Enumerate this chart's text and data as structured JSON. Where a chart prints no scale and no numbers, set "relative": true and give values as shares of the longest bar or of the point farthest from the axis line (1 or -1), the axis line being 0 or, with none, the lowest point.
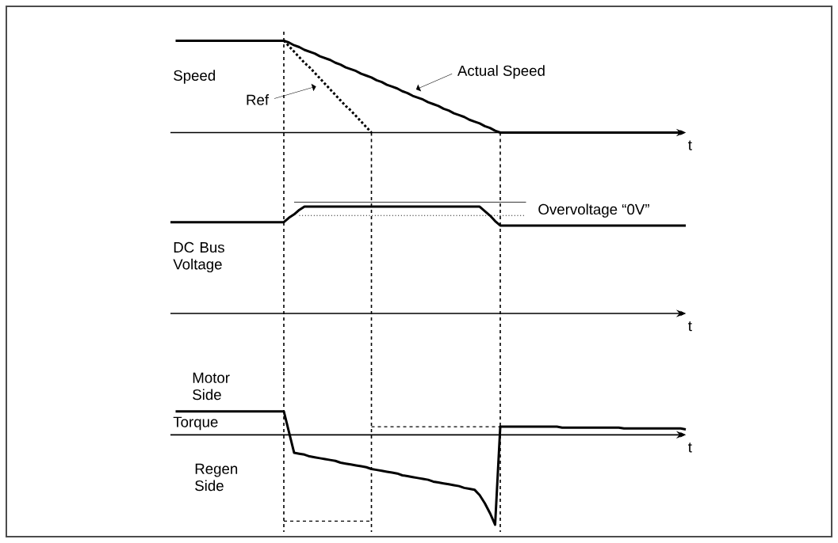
{
  "chart_data": [
    {
      "type": "line",
      "ylabel": "Speed",
      "xlabel": "t",
      "relative": true,
      "tick_labels": false,
      "marker": "none",
      "categories": [
        null,
        null,
        null,
        null,
        null,
        null,
        null,
        null,
        null,
        null,
        null,
        null,
        null,
        null,
        null,
        null,
        null,
        null,
        null,
        null,
        null,
        null,
        null,
        null,
        null,
        null,
        null,
        null,
        null,
        null,
        null,
        null,
        null,
        null,
        null,
        null,
        null,
        null,
        null,
        null,
        null,
        null,
        null,
        null,
        null,
        null,
        null,
        null,
        null,
        null,
        null,
        null,
        null,
        null,
        null,
        null,
        null,
        null,
        null,
        null,
        null,
        null,
        null,
        null,
        null,
        null,
        null,
        null,
        null,
        null,
        null,
        null,
        null,
        null,
        null,
        null,
        null,
        null,
        null,
        null,
        null,
        null,
        null,
        null,
        null,
        null,
        null,
        null,
        null,
        null,
        null,
        null,
        null,
        null,
        null,
        null,
        null,
        null,
        null,
        null,
        null
      ],
      "series": [
        {
          "name": "Actual Speed",
          "color": "#000000",
          "line_style": "solid",
          "values": [
            null,
            1,
            1,
            1,
            1,
            1,
            1,
            1,
            1,
            1,
            1,
            1,
            1,
            1,
            1,
            1,
            1,
            1,
            1,
            1,
            1,
            1,
            1,
            0.98,
            0.95,
            0.93,
            0.9,
            0.88,
            0.86,
            0.83,
            0.81,
            0.79,
            0.76,
            0.74,
            0.71,
            0.69,
            0.67,
            0.64,
            0.62,
            0.6,
            0.57,
            0.55,
            0.52,
            0.5,
            0.48,
            0.45,
            0.43,
            0.4,
            0.38,
            0.36,
            0.33,
            0.31,
            0.29,
            0.26,
            0.24,
            0.21,
            0.19,
            0.17,
            0.14,
            0.12,
            0.1,
            0.07,
            0.05,
            0.02,
            0,
            0,
            0,
            0,
            0,
            0,
            0,
            0,
            0,
            0,
            0,
            0,
            0,
            0,
            0,
            0,
            0,
            0,
            0,
            0,
            0,
            0,
            0,
            0,
            0,
            0,
            0,
            0,
            0,
            0,
            0,
            0,
            0,
            0,
            0,
            0,
            null
          ]
        },
        {
          "name": "Ref",
          "color": "#000000",
          "line_style": "dotted",
          "values": [
            null,
            null,
            null,
            null,
            null,
            null,
            null,
            null,
            null,
            null,
            null,
            null,
            null,
            null,
            null,
            null,
            null,
            null,
            null,
            null,
            null,
            null,
            1,
            0.94,
            0.88,
            0.82,
            0.76,
            0.71,
            0.65,
            0.59,
            0.53,
            0.47,
            0.41,
            0.35,
            0.29,
            0.24,
            0.18,
            0.12,
            0.06,
            0,
            null,
            null,
            null,
            null,
            null,
            null,
            null,
            null,
            null,
            null,
            null,
            null,
            null,
            null,
            null,
            null,
            null,
            null,
            null,
            null,
            null,
            null,
            null,
            null,
            null,
            null,
            null,
            null,
            null,
            null,
            null,
            null,
            null,
            null,
            null,
            null,
            null,
            null,
            null,
            null,
            null,
            null,
            null,
            null,
            null,
            null,
            null,
            null,
            null,
            null,
            null,
            null,
            null,
            null,
            null,
            null,
            null,
            null,
            null,
            null,
            null
          ]
        }
      ]
    },
    {
      "type": "line",
      "ylabel": "DC Bus Voltage",
      "xlabel": "t",
      "relative": true,
      "tick_labels": false,
      "marker": "none",
      "categories": [
        null,
        null,
        null,
        null,
        null,
        null,
        null,
        null,
        null,
        null,
        null,
        null,
        null,
        null,
        null,
        null,
        null,
        null,
        null,
        null,
        null,
        null,
        null,
        null,
        null,
        null,
        null,
        null,
        null,
        null,
        null,
        null,
        null,
        null,
        null,
        null,
        null,
        null,
        null,
        null,
        null,
        null,
        null,
        null,
        null,
        null,
        null,
        null,
        null,
        null,
        null,
        null,
        null,
        null,
        null,
        null,
        null,
        null,
        null,
        null,
        null,
        null,
        null,
        null,
        null,
        null,
        null,
        null,
        null,
        null,
        null,
        null,
        null,
        null,
        null,
        null,
        null,
        null,
        null,
        null,
        null,
        null,
        null,
        null,
        null,
        null,
        null,
        null,
        null,
        null,
        null,
        null,
        null,
        null,
        null,
        null,
        null,
        null,
        null,
        null,
        null
      ],
      "series": [
        {
          "color": "#000000",
          "line_style": "solid",
          "values": [
            0.82,
            0.82,
            0.82,
            0.82,
            0.82,
            0.82,
            0.82,
            0.82,
            0.82,
            0.82,
            0.82,
            0.82,
            0.82,
            0.82,
            0.82,
            0.82,
            0.82,
            0.82,
            0.82,
            0.82,
            0.82,
            0.82,
            0.82,
            0.86,
            0.89,
            0.93,
            0.96,
            0.96,
            0.96,
            0.96,
            0.96,
            0.96,
            0.96,
            0.96,
            0.96,
            0.96,
            0.96,
            0.96,
            0.96,
            0.96,
            0.96,
            0.96,
            0.96,
            0.96,
            0.96,
            0.96,
            0.96,
            0.96,
            0.96,
            0.96,
            0.96,
            0.96,
            0.96,
            0.96,
            0.96,
            0.96,
            0.96,
            0.96,
            0.96,
            0.96,
            0.96,
            0.92,
            0.88,
            0.83,
            0.79,
            0.79,
            0.79,
            0.79,
            0.79,
            0.79,
            0.79,
            0.79,
            0.79,
            0.79,
            0.79,
            0.79,
            0.79,
            0.79,
            0.79,
            0.79,
            0.79,
            0.79,
            0.79,
            0.79,
            0.79,
            0.79,
            0.79,
            0.79,
            0.79,
            0.79,
            0.79,
            0.79,
            0.79,
            0.79,
            0.79,
            0.79,
            0.79,
            0.79,
            0.79,
            0.79,
            0.79
          ]
        },
        {
          "name": "Overvoltage “0V”",
          "color": "#000000",
          "line_style": "solid",
          "values": [
            null,
            null,
            null,
            null,
            null,
            null,
            null,
            null,
            null,
            null,
            null,
            null,
            null,
            null,
            null,
            null,
            null,
            null,
            null,
            null,
            null,
            null,
            null,
            null,
            1,
            1,
            1,
            1,
            1,
            1,
            1,
            1,
            1,
            1,
            1,
            1,
            1,
            1,
            1,
            1,
            1,
            1,
            1,
            1,
            1,
            1,
            1,
            1,
            1,
            1,
            1,
            1,
            1,
            1,
            1,
            1,
            1,
            1,
            1,
            1,
            1,
            1,
            1,
            1,
            1,
            1,
            1,
            1,
            1,
            1,
            null,
            null,
            null,
            null,
            null,
            null,
            null,
            null,
            null,
            null,
            null,
            null,
            null,
            null,
            null,
            null,
            null,
            null,
            null,
            null,
            null,
            null,
            null,
            null,
            null,
            null,
            null,
            null,
            null,
            null,
            null
          ]
        },
        {
          "color": "#000000",
          "line_style": "dotted",
          "values": [
            null,
            null,
            null,
            null,
            null,
            null,
            null,
            null,
            null,
            null,
            null,
            null,
            null,
            null,
            null,
            null,
            null,
            null,
            null,
            null,
            null,
            null,
            null,
            null,
            null,
            0.88,
            0.88,
            0.88,
            0.88,
            0.88,
            0.88,
            0.88,
            0.88,
            0.88,
            0.88,
            0.88,
            0.88,
            0.88,
            0.88,
            0.88,
            0.88,
            0.88,
            0.88,
            0.88,
            0.88,
            0.88,
            0.88,
            0.88,
            0.88,
            0.88,
            0.88,
            0.88,
            0.88,
            0.88,
            0.88,
            0.88,
            0.88,
            0.88,
            0.88,
            0.88,
            0.88,
            0.88,
            0.88,
            0.88,
            0.88,
            0.88,
            0.88,
            0.88,
            0.88,
            0.88,
            null,
            null,
            null,
            null,
            null,
            null,
            null,
            null,
            null,
            null,
            null,
            null,
            null,
            null,
            null,
            null,
            null,
            null,
            null,
            null,
            null,
            null,
            null,
            null,
            null,
            null,
            null,
            null,
            null,
            null,
            null
          ]
        }
      ]
    },
    {
      "type": "line",
      "ylabel": "Torque",
      "xlabel": "t",
      "relative": true,
      "tick_labels": false,
      "marker": "none",
      "categories": [
        null,
        null,
        null,
        null,
        null,
        null,
        null,
        null,
        null,
        null,
        null,
        null,
        null,
        null,
        null,
        null,
        null,
        null,
        null,
        null,
        null,
        null,
        null,
        null,
        null,
        null,
        null,
        null,
        null,
        null,
        null,
        null,
        null,
        null,
        null,
        null,
        null,
        null,
        null,
        null,
        null,
        null,
        null,
        null,
        null,
        null,
        null,
        null,
        null,
        null,
        null,
        null,
        null,
        null,
        null,
        null,
        null,
        null,
        null,
        null,
        null,
        null,
        null,
        null,
        null,
        null,
        null,
        null,
        null,
        null,
        null,
        null,
        null,
        null,
        null,
        null,
        null,
        null,
        null,
        null,
        null,
        null,
        null,
        null,
        null,
        null,
        null,
        null,
        null,
        null,
        null,
        null,
        null,
        null,
        null,
        null,
        null,
        null,
        null,
        null,
        null
      ],
      "series": [
        {
          "color": "#000000",
          "line_style": "solid",
          "values": [
            null,
            0.26,
            0.26,
            0.26,
            0.26,
            0.26,
            0.26,
            0.26,
            0.26,
            0.26,
            0.26,
            0.26,
            0.26,
            0.26,
            0.26,
            0.26,
            0.26,
            0.26,
            0.26,
            0.26,
            0.26,
            0.26,
            0.26,
            0.03,
            -0.2,
            -0.21,
            -0.22,
            -0.24,
            -0.25,
            -0.26,
            -0.27,
            -0.28,
            -0.29,
            -0.31,
            -0.32,
            -0.33,
            -0.34,
            -0.35,
            -0.36,
            -0.38,
            -0.39,
            -0.4,
            -0.41,
            -0.42,
            -0.43,
            -0.45,
            -0.46,
            -0.47,
            -0.48,
            -0.49,
            -0.5,
            -0.52,
            -0.53,
            -0.54,
            -0.55,
            -0.56,
            -0.57,
            -0.59,
            -0.6,
            -0.61,
            -0.67,
            -0.76,
            -0.87,
            -1,
            0.09,
            0.09,
            0.09,
            0.09,
            0.09,
            0.09,
            0.09,
            0.09,
            0.09,
            0.09,
            0.09,
            0.09,
            0.08,
            0.08,
            0.08,
            0.08,
            0.08,
            0.08,
            0.08,
            0.08,
            0.08,
            0.08,
            0.08,
            0.08,
            0.07,
            0.07,
            0.07,
            0.07,
            0.07,
            0.07,
            0.07,
            0.07,
            0.07,
            0.07,
            0.07,
            0.07,
            0.06
          ]
        },
        {
          "color": "#000000",
          "line_style": "dashed",
          "values": [
            null,
            null,
            null,
            null,
            null,
            null,
            null,
            null,
            null,
            null,
            null,
            null,
            null,
            null,
            null,
            null,
            null,
            null,
            null,
            null,
            null,
            null,
            -0.96,
            -0.96,
            -0.96,
            -0.96,
            -0.96,
            -0.96,
            -0.96,
            -0.96,
            -0.96,
            -0.96,
            -0.96,
            -0.96,
            -0.96,
            -0.96,
            -0.96,
            -0.96,
            -0.96,
            -0.96,
            null,
            null,
            null,
            null,
            null,
            null,
            null,
            null,
            null,
            null,
            null,
            null,
            null,
            null,
            null,
            null,
            null,
            null,
            null,
            null,
            null,
            null,
            null,
            null,
            null,
            null,
            null,
            null,
            null,
            null,
            null,
            null,
            null,
            null,
            null,
            null,
            null,
            null,
            null,
            null,
            null,
            null,
            null,
            null,
            null,
            null,
            null,
            null,
            null,
            null,
            null,
            null,
            null,
            null,
            null,
            null,
            null,
            null,
            null,
            null,
            null
          ]
        },
        {
          "color": "#000000",
          "line_style": "dashed",
          "values": [
            null,
            null,
            null,
            null,
            null,
            null,
            null,
            null,
            null,
            null,
            null,
            null,
            null,
            null,
            null,
            null,
            null,
            null,
            null,
            null,
            null,
            null,
            null,
            null,
            null,
            null,
            null,
            null,
            null,
            null,
            null,
            null,
            null,
            null,
            null,
            null,
            null,
            null,
            null,
            0.09,
            0.09,
            0.09,
            0.09,
            0.09,
            0.09,
            0.09,
            0.09,
            0.09,
            0.09,
            0.09,
            0.09,
            0.09,
            0.09,
            0.09,
            0.09,
            0.09,
            0.09,
            0.09,
            0.09,
            0.09,
            0.09,
            0.09,
            0.09,
            0.09,
            0.09,
            null,
            null,
            null,
            null,
            null,
            null,
            null,
            null,
            null,
            null,
            null,
            null,
            null,
            null,
            null,
            null,
            null,
            null,
            null,
            null,
            null,
            null,
            null,
            null,
            null,
            null,
            null,
            null,
            null,
            null,
            null,
            null,
            null,
            null,
            null,
            null
          ]
        }
      ],
      "annotations": [
        "Motor Side",
        "Regen Side"
      ]
    }
  ]
}
